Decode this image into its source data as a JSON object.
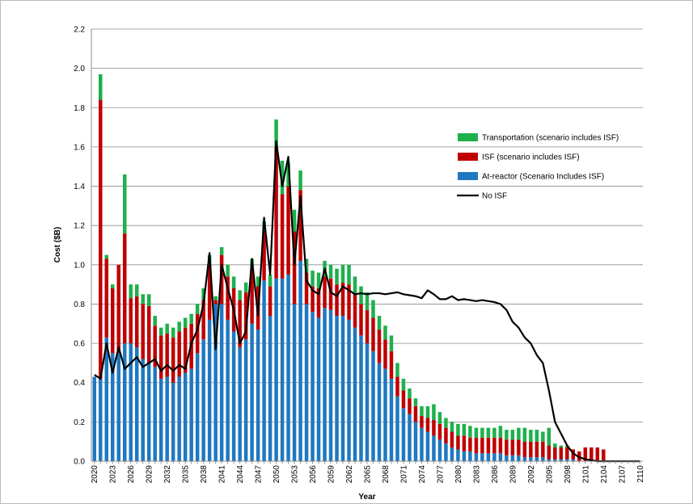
{
  "chart_data": {
    "type": "bar",
    "stacked": true,
    "y_label": "Cost ($B)",
    "x_label": "Year",
    "categories": [
      "2020",
      null,
      null,
      "2023",
      null,
      null,
      "2026",
      null,
      null,
      "2029",
      null,
      null,
      "2032",
      null,
      null,
      "2035",
      null,
      null,
      "2038",
      null,
      null,
      "2041",
      null,
      null,
      "2044",
      null,
      null,
      "2047",
      null,
      null,
      "2050",
      null,
      null,
      "2053",
      null,
      null,
      "2056",
      null,
      null,
      "2059",
      null,
      null,
      "2062",
      null,
      null,
      "2065",
      null,
      null,
      "2068",
      null,
      null,
      "2071",
      null,
      null,
      "2074",
      null,
      null,
      "2077",
      null,
      null,
      "2080",
      null,
      null,
      "2083",
      null,
      null,
      "2086",
      null,
      null,
      "2089",
      null,
      null,
      "2092",
      null,
      null,
      "2095",
      null,
      null,
      "2098",
      null,
      null,
      "2101",
      null,
      null,
      "2104",
      null,
      null,
      "2107",
      null,
      null,
      "2110"
    ],
    "series": [
      {
        "name": "At-reactor (Scenario Includes ISF)",
        "color": "#1f78c1",
        "values": [
          0.43,
          0.42,
          0.63,
          0.55,
          0.55,
          0.6,
          0.6,
          0.58,
          0.52,
          0.5,
          0.48,
          0.42,
          0.43,
          0.4,
          0.43,
          0.45,
          0.47,
          0.55,
          0.62,
          0.72,
          0.8,
          0.8,
          0.72,
          0.66,
          0.58,
          0.62,
          0.7,
          0.67,
          0.92,
          0.74,
          0.93,
          0.93,
          0.95,
          0.8,
          1.02,
          0.8,
          0.76,
          0.73,
          0.78,
          0.77,
          0.74,
          0.74,
          0.72,
          0.68,
          0.64,
          0.6,
          0.56,
          0.5,
          0.47,
          0.42,
          0.33,
          0.27,
          0.24,
          0.2,
          0.17,
          0.15,
          0.13,
          0.11,
          0.09,
          0.07,
          0.06,
          0.05,
          0.05,
          0.04,
          0.04,
          0.04,
          0.04,
          0.04,
          0.03,
          0.03,
          0.03,
          0.02,
          0.02,
          0.02,
          0.02,
          0.01,
          0.01,
          0.01,
          0.01,
          0.01,
          0,
          0,
          0,
          0,
          0,
          0,
          0,
          0,
          0,
          0,
          0
        ]
      },
      {
        "name": "ISF (scenario includes  ISF)",
        "color": "#c00000",
        "values": [
          0,
          1.42,
          0.4,
          0.33,
          0.45,
          0.56,
          0.23,
          0.26,
          0.28,
          0.29,
          0.21,
          0.22,
          0.22,
          0.23,
          0.23,
          0.23,
          0.23,
          0.2,
          0.2,
          0.28,
          0.02,
          0.25,
          0.22,
          0.22,
          0.24,
          0.24,
          0.28,
          0.22,
          0.25,
          0.15,
          0.67,
          0.43,
          0.45,
          0.37,
          0.36,
          0.16,
          0.13,
          0.15,
          0.16,
          0.16,
          0.16,
          0.17,
          0.18,
          0.17,
          0.16,
          0.17,
          0.17,
          0.17,
          0.15,
          0.14,
          0.1,
          0.09,
          0.08,
          0.08,
          0.06,
          0.07,
          0.08,
          0.08,
          0.08,
          0.08,
          0.07,
          0.08,
          0.07,
          0.08,
          0.08,
          0.08,
          0.08,
          0.08,
          0.08,
          0.08,
          0.08,
          0.08,
          0.08,
          0.08,
          0.08,
          0.07,
          0.06,
          0.06,
          0.06,
          0.05,
          0.05,
          0.07,
          0.07,
          0.07,
          0.06,
          0,
          0,
          0,
          0,
          0,
          0
        ]
      },
      {
        "name": "Transportation  (scenario includes ISF)",
        "color": "#1db04c",
        "values": [
          0,
          0.13,
          0.02,
          0.02,
          0,
          0.3,
          0.07,
          0.06,
          0.05,
          0.06,
          0.05,
          0.04,
          0.05,
          0.05,
          0.05,
          0.05,
          0.05,
          0.05,
          0.06,
          0.05,
          0.02,
          0.04,
          0.06,
          0.06,
          0.05,
          0.05,
          0.05,
          0.05,
          0.05,
          0.06,
          0.14,
          0.17,
          0.12,
          0.11,
          0.1,
          0.07,
          0.08,
          0.08,
          0.08,
          0.07,
          0.08,
          0.09,
          0.1,
          0.09,
          0.09,
          0.09,
          0.09,
          0.07,
          0.07,
          0.08,
          0.07,
          0.06,
          0.05,
          0.04,
          0.05,
          0.06,
          0.08,
          0.06,
          0.05,
          0.05,
          0.06,
          0.06,
          0.06,
          0.05,
          0.05,
          0.05,
          0.05,
          0.06,
          0.05,
          0.05,
          0.06,
          0.07,
          0.06,
          0.06,
          0.05,
          0.09,
          0.02,
          0.01,
          0.01,
          0,
          0,
          0,
          0,
          0,
          0,
          0,
          0,
          0,
          0,
          0,
          0
        ]
      },
      {
        "name": "No ISF",
        "type": "line",
        "color": "#000000",
        "values": [
          0.44,
          0.42,
          0.6,
          0.45,
          0.58,
          0.47,
          0.5,
          0.53,
          0.48,
          0.5,
          0.52,
          0.46,
          0.49,
          0.46,
          0.49,
          0.47,
          0.6,
          0.67,
          0.8,
          1.06,
          0.57,
          1.0,
          0.88,
          0.77,
          0.6,
          0.66,
          1.03,
          0.74,
          1.24,
          0.95,
          1.63,
          1.4,
          1.55,
          1.0,
          1.35,
          0.92,
          0.87,
          0.85,
          0.98,
          0.86,
          0.84,
          0.89,
          0.87,
          0.85,
          0.855,
          0.85,
          0.855,
          0.855,
          0.85,
          0.855,
          0.86,
          0.85,
          0.845,
          0.84,
          0.83,
          0.87,
          0.85,
          0.825,
          0.825,
          0.84,
          0.82,
          0.825,
          0.82,
          0.815,
          0.82,
          0.815,
          0.81,
          0.8,
          0.77,
          0.71,
          0.68,
          0.63,
          0.6,
          0.54,
          0.5,
          0.36,
          0.2,
          0.14,
          0.08,
          0.04,
          0.02,
          0.01,
          0.005,
          0,
          0,
          0,
          0,
          0,
          0,
          0,
          0
        ]
      }
    ],
    "ylim": [
      0,
      2.2
    ],
    "yticks": [
      {
        "value": 0,
        "label": "0.0"
      },
      0.2,
      0.4,
      0.6,
      0.8,
      {
        "value": 1,
        "label": "1.0"
      },
      1.2,
      1.4,
      1.6,
      1.8,
      {
        "value": 2,
        "label": "2.0"
      },
      2.2
    ],
    "grid": true,
    "legend_position": "right"
  }
}
